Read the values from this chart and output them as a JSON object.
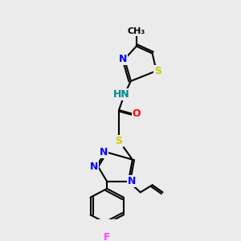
{
  "bg_color": "#ebebeb",
  "bond_color": "#000000",
  "bond_width": 1.5,
  "atom_colors": {
    "N": "#0000ff",
    "S": "#cccc00",
    "O": "#ff0000",
    "F": "#ff44ff",
    "H": "#008b8b",
    "C": "#000000"
  },
  "font_size": 9,
  "fig_width": 3.0,
  "fig_height": 3.0,
  "dpi": 100
}
